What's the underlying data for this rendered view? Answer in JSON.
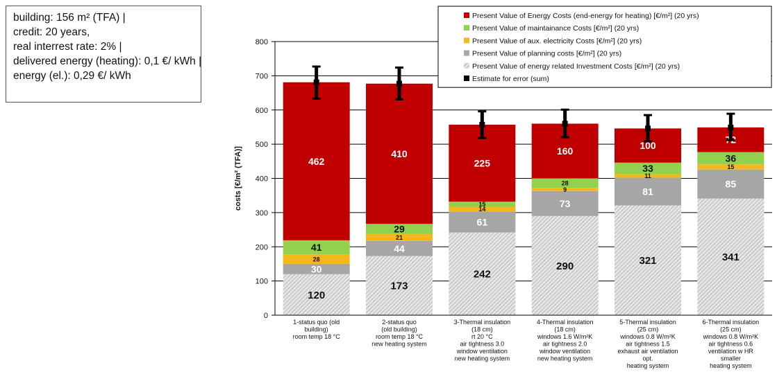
{
  "info_box": {
    "lines": [
      "building: 156 m² (TFA) |",
      "credit: 20 years,",
      "real interrest rate: 2% |",
      "delivered energy (heating): 0,1 €/ kWh |",
      "energy (el.): 0,29 €/ kWh"
    ]
  },
  "chart_data": {
    "type": "bar",
    "stacked": true,
    "title": "",
    "ylabel": "costs [€/m² (TFA)]",
    "xlabel": "",
    "ylim": [
      0,
      800
    ],
    "yticks": [
      0,
      100,
      200,
      300,
      400,
      500,
      600,
      700,
      800
    ],
    "grid": "horizontal",
    "legend_position": "top-right",
    "categories": [
      [
        "1-status quo (old",
        "building)",
        "room temp 18 °C"
      ],
      [
        "2-status quo",
        "(old building)",
        "room temp 18 °C",
        "new heating system"
      ],
      [
        "3-Thermal insulation",
        "(18 cm)",
        "rt 20 °C",
        "air tightness 3.0",
        "window ventilation",
        "new heating system"
      ],
      [
        "4-Thermal insulation",
        "(18 cm)",
        "windows 1.6 W/m²K",
        "air tightness 2.0",
        "window ventilation",
        "new heating system"
      ],
      [
        "5-Thermal insulation",
        "(25 cm)",
        "windows 0.8 W/m²K",
        "air tightness 1.5",
        "exhaust air ventilation",
        "opt.",
        "heating system"
      ],
      [
        "6-Thermal insulation",
        "(25 cm)",
        "windows 0.8 W/m²K",
        "air tightness 0.6",
        "ventilation w HR",
        "smaller",
        "heating system"
      ]
    ],
    "series": [
      {
        "name": "Present Value of energy related Investment Costs  [€/m²]   (20 yrs)",
        "values": [
          120,
          173,
          242,
          290,
          321,
          341
        ],
        "color": "#d9d9d9",
        "pattern": "hatch",
        "label_color": "#111111"
      },
      {
        "name": "Present Value of planning costs [€/m²] (20 yrs)",
        "values": [
          30,
          44,
          61,
          73,
          81,
          85
        ],
        "color": "#a6a6a6",
        "label_color": "#ffffff"
      },
      {
        "name": "Present Value of aux. electricity  Costs [€/m²]   (20 yrs)",
        "values": [
          28,
          21,
          14,
          9,
          11,
          15
        ],
        "color": "#f4b71c",
        "label_color": "#111111"
      },
      {
        "name": "Present Value of maintainance Costs [€/m²]   (20 yrs)",
        "values": [
          41,
          29,
          15,
          28,
          33,
          36
        ],
        "color": "#92d050",
        "label_color": "#111111"
      },
      {
        "name": "Present Value of Energy Costs (end-energy for heating)  [€/m²]   (20 yrs)",
        "values": [
          462,
          410,
          225,
          160,
          100,
          72
        ],
        "color": "#c00000",
        "label_color": "#ffffff"
      }
    ],
    "error_series_name": "Estimate for error (sum)",
    "error_bars": [
      {
        "center": 681,
        "low": 633,
        "high": 727
      },
      {
        "center": 677,
        "low": 631,
        "high": 724
      },
      {
        "center": 557,
        "low": 518,
        "high": 596
      },
      {
        "center": 560,
        "low": 520,
        "high": 601
      },
      {
        "center": 546,
        "low": 508,
        "high": 585
      },
      {
        "center": 549,
        "low": 512,
        "high": 589
      }
    ],
    "legend_order": [
      4,
      3,
      2,
      1,
      0
    ]
  }
}
